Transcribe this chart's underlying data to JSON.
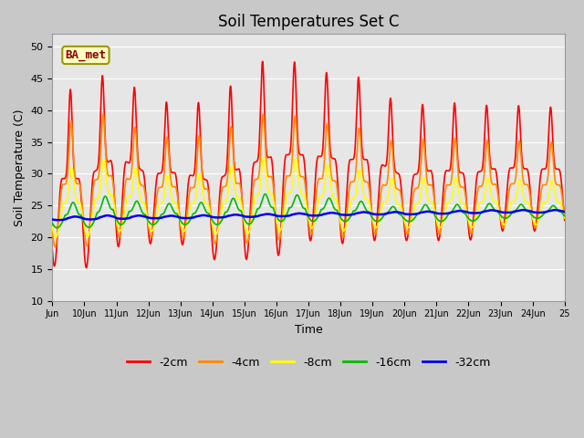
{
  "title": "Soil Temperatures Set C",
  "xlabel": "Time",
  "ylabel": "Soil Temperature (C)",
  "xlim_start": 0,
  "xlim_end": 16,
  "ylim": [
    10,
    52
  ],
  "yticks": [
    10,
    15,
    20,
    25,
    30,
    35,
    40,
    45,
    50
  ],
  "xtick_labels": [
    "Jun",
    "10Jun",
    "11Jun",
    "12Jun",
    "13Jun",
    "14Jun",
    "15Jun",
    "16Jun",
    "17Jun",
    "18Jun",
    "19Jun",
    "20Jun",
    "21Jun",
    "22Jun",
    "23Jun",
    "24Jun",
    "25"
  ],
  "legend_labels": [
    "-2cm",
    "-4cm",
    "-8cm",
    "-16cm",
    "-32cm"
  ],
  "legend_colors": [
    "#ff0000",
    "#ff8800",
    "#ffff00",
    "#00bb00",
    "#0000ee"
  ],
  "annotation_text": "BA_met",
  "bg_color": "#d0d0d0",
  "plot_bg_color": "#e8e8e8",
  "grid_color": "#ffffff",
  "title_fontsize": 12,
  "axis_fontsize": 9,
  "tick_fontsize": 8
}
